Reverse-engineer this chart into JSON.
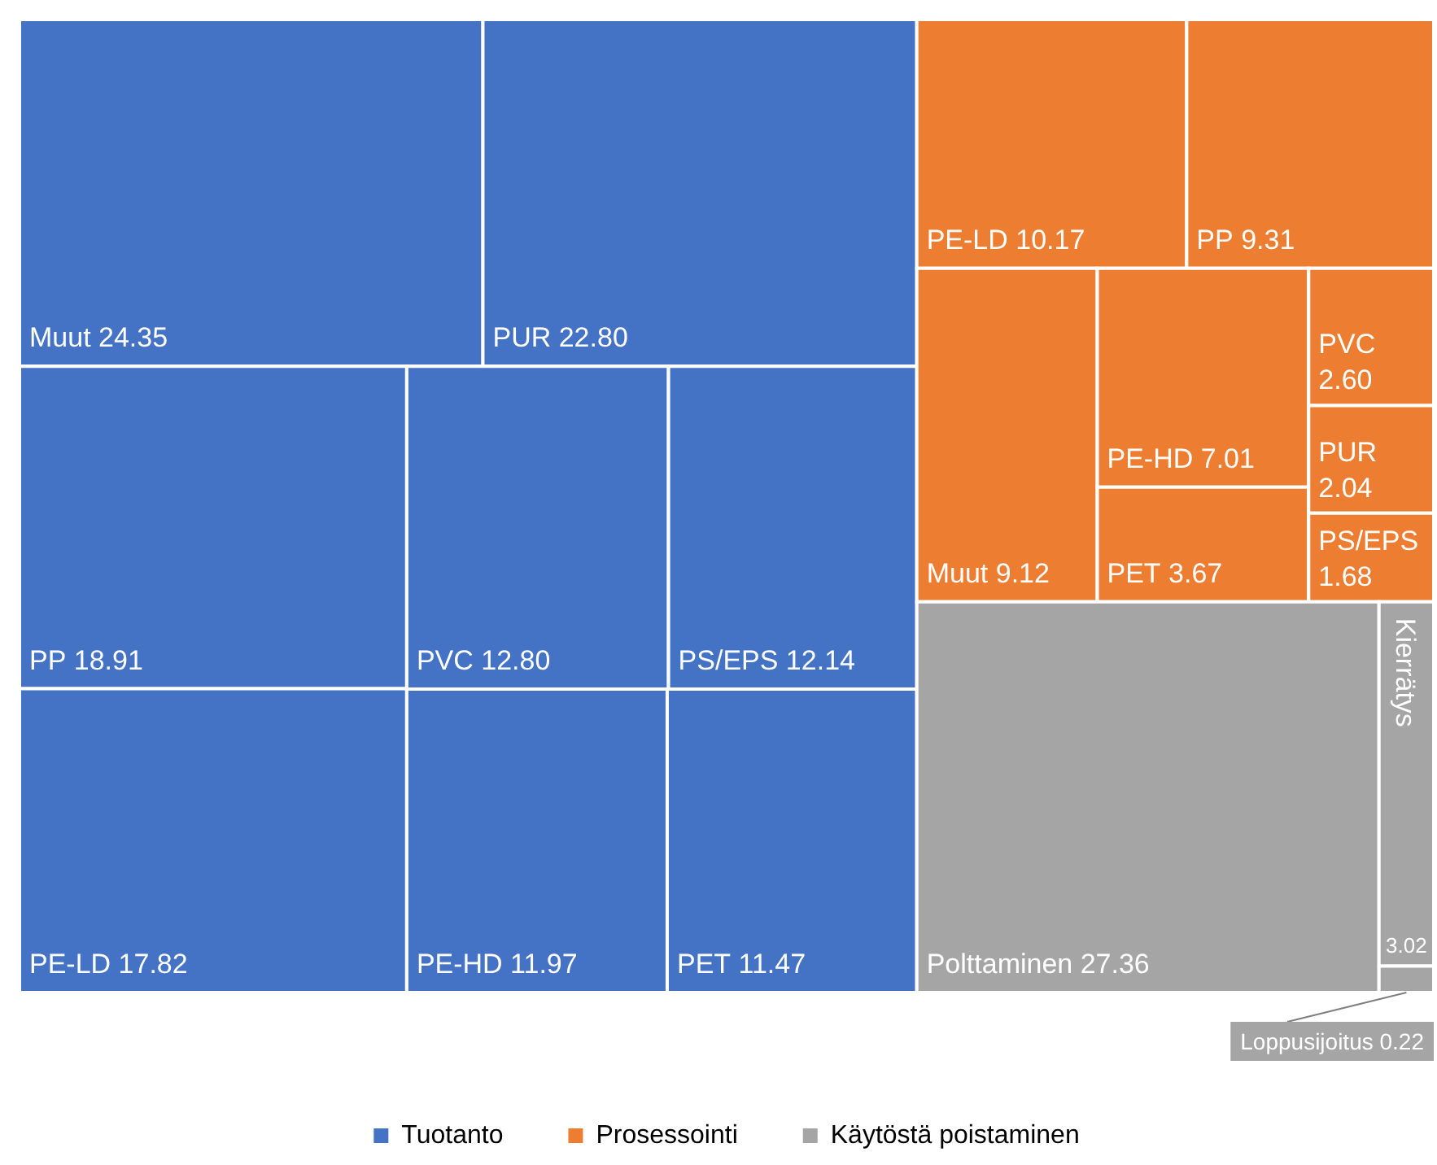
{
  "chart_data": {
    "type": "other",
    "legend": "bottom",
    "categories": [
      "Muut",
      "PUR",
      "PP",
      "PE-LD",
      "PVC",
      "PS/EPS",
      "PE-HD",
      "PET",
      "PE-LD",
      "PP",
      "Muut",
      "PE-HD",
      "PET",
      "PVC",
      "PUR",
      "PS/EPS",
      "Polttaminen",
      "Kierrätys",
      "Loppusijoitus"
    ],
    "series": [
      {
        "name": "Tuotanto",
        "color": "#4472c4",
        "values": [
          24.35,
          22.8,
          18.91,
          17.82,
          12.8,
          12.14,
          11.97,
          11.47,
          null,
          null,
          null,
          null,
          null,
          null,
          null,
          null,
          null,
          null,
          null
        ],
        "value_labels": [
          "24.35",
          "22.80",
          "18.91",
          "17.82",
          "12.80",
          "12.14",
          "11.97",
          "11.47",
          null,
          null,
          null,
          null,
          null,
          null,
          null,
          null,
          null,
          null,
          null
        ]
      },
      {
        "name": "Prosessointi",
        "color": "#ed7d31",
        "values": [
          null,
          null,
          null,
          null,
          null,
          null,
          null,
          null,
          10.17,
          9.31,
          9.12,
          7.01,
          3.67,
          2.6,
          2.04,
          1.68,
          null,
          null,
          null
        ],
        "value_labels": [
          null,
          null,
          null,
          null,
          null,
          null,
          null,
          null,
          "10.17",
          "9.31",
          "9.12",
          "7.01",
          "3.67",
          "2.60",
          "2.04",
          "1.68",
          null,
          null,
          null
        ]
      },
      {
        "name": "Käytöstä poistaminen",
        "color": "#a5a5a5",
        "values": [
          null,
          null,
          null,
          null,
          null,
          null,
          null,
          null,
          null,
          null,
          null,
          null,
          null,
          null,
          null,
          null,
          27.36,
          3.02,
          0.22
        ],
        "value_labels": [
          null,
          null,
          null,
          null,
          null,
          null,
          null,
          null,
          null,
          null,
          null,
          null,
          null,
          null,
          null,
          null,
          "27.36",
          "3.02",
          "0.22"
        ]
      }
    ]
  }
}
